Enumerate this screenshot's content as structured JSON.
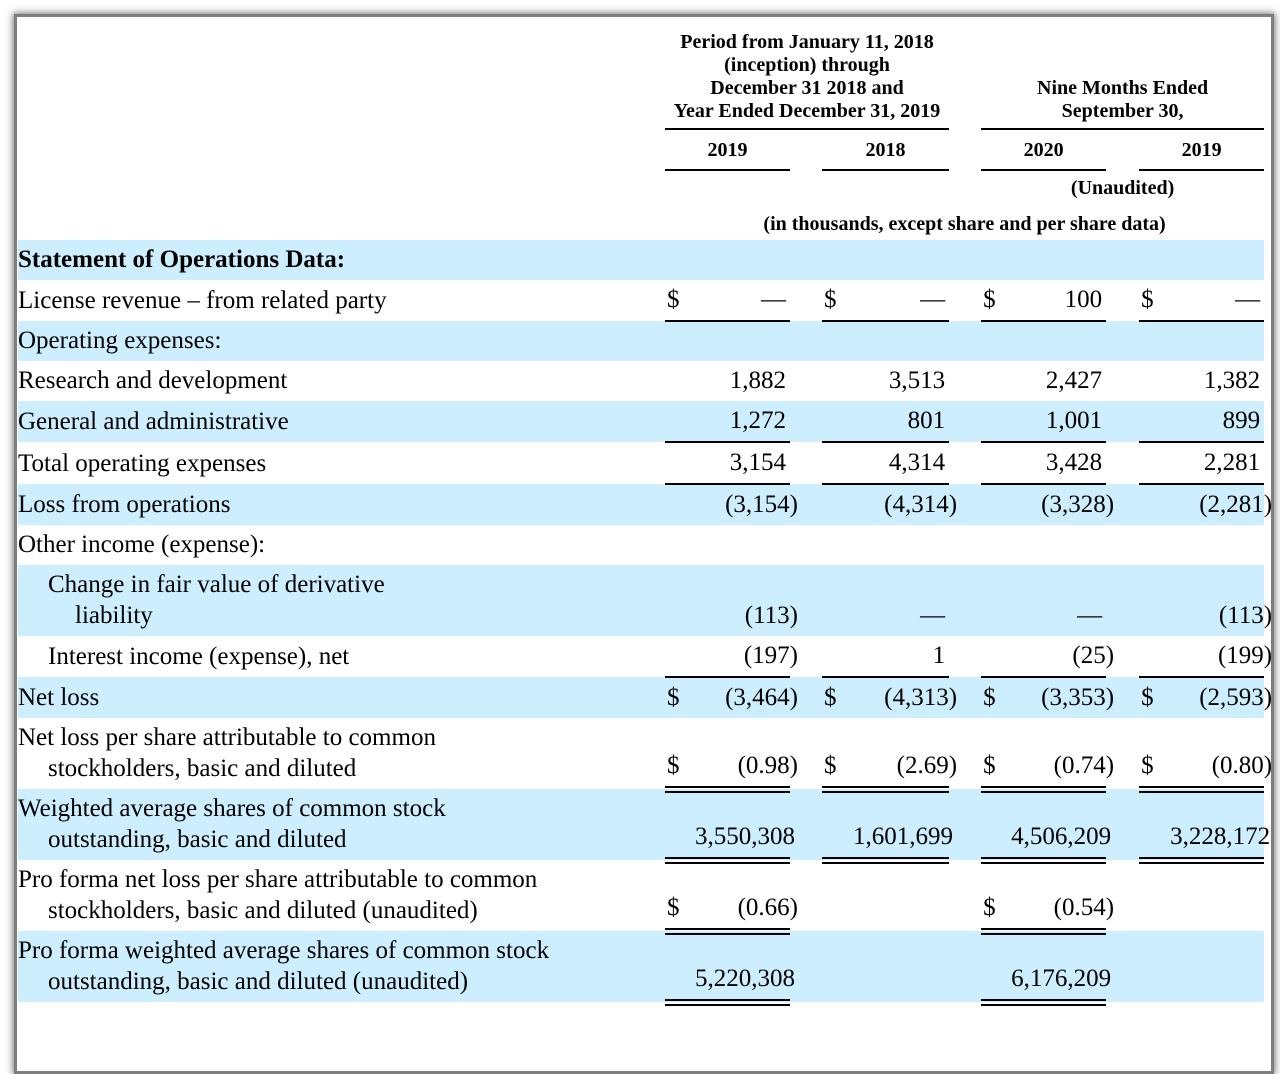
{
  "document": {
    "header": {
      "period_lines": [
        "Period from January 11, 2018",
        "(inception) through",
        "December 31 2018 and",
        "Year Ended December 31, 2019"
      ],
      "nine_months_lines": [
        "Nine Months Ended",
        "September 30,"
      ],
      "years": [
        "2019",
        "2018",
        "2020",
        "2019"
      ],
      "unaudited_note": "(Unaudited)",
      "units_note": "(in thousands, except share and per share data)"
    },
    "colors": {
      "row_highlight": "#cceeff",
      "rule": "#000000",
      "frame_border": "#7e7e7e"
    },
    "table": {
      "rows": [
        {
          "label": [
            "Statement of Operations Data:"
          ],
          "bold": true,
          "shaded": true,
          "indent": 0,
          "cells": [
            null,
            null,
            null,
            null
          ]
        },
        {
          "label": [
            "License revenue – from related party"
          ],
          "bold": false,
          "shaded": false,
          "indent": 0,
          "cells": [
            {
              "dollar": "$",
              "value": "—",
              "rule": "single"
            },
            {
              "dollar": "$",
              "value": "—",
              "rule": "single"
            },
            {
              "dollar": "$",
              "value": "100",
              "rule": "single"
            },
            {
              "dollar": "$",
              "value": "—",
              "rule": "single"
            }
          ]
        },
        {
          "label": [
            "Operating expenses:"
          ],
          "bold": false,
          "shaded": true,
          "indent": 0,
          "cells": [
            null,
            null,
            null,
            null
          ]
        },
        {
          "label": [
            "Research and development"
          ],
          "bold": false,
          "shaded": false,
          "indent": 0,
          "cells": [
            {
              "value": "1,882"
            },
            {
              "value": "3,513"
            },
            {
              "value": "2,427"
            },
            {
              "value": "1,382"
            }
          ]
        },
        {
          "label": [
            "General and administrative"
          ],
          "bold": false,
          "shaded": true,
          "indent": 0,
          "cells": [
            {
              "value": "1,272",
              "rule": "single"
            },
            {
              "value": "801",
              "rule": "single"
            },
            {
              "value": "1,001",
              "rule": "single"
            },
            {
              "value": "899",
              "rule": "single"
            }
          ]
        },
        {
          "label": [
            "Total operating expenses"
          ],
          "bold": false,
          "shaded": false,
          "indent": 0,
          "cells": [
            {
              "value": "3,154",
              "rule": "single"
            },
            {
              "value": "4,314",
              "rule": "single"
            },
            {
              "value": "3,428",
              "rule": "single"
            },
            {
              "value": "2,281",
              "rule": "single"
            }
          ]
        },
        {
          "label": [
            "Loss from operations"
          ],
          "bold": false,
          "shaded": true,
          "indent": 0,
          "cells": [
            {
              "value": "(3,154)"
            },
            {
              "value": "(4,314)"
            },
            {
              "value": "(3,328)"
            },
            {
              "value": "(2,281)"
            }
          ]
        },
        {
          "label": [
            "Other income (expense):"
          ],
          "bold": false,
          "shaded": false,
          "indent": 0,
          "cells": [
            null,
            null,
            null,
            null
          ]
        },
        {
          "label": [
            "Change in fair value of derivative",
            "liability"
          ],
          "bold": false,
          "shaded": true,
          "indent": 1,
          "cells": [
            {
              "value": "(113)"
            },
            {
              "value": "—"
            },
            {
              "value": "—"
            },
            {
              "value": "(113)"
            }
          ]
        },
        {
          "label": [
            "Interest income (expense), net"
          ],
          "bold": false,
          "shaded": false,
          "indent": 1,
          "cells": [
            {
              "value": "(197)",
              "rule": "single"
            },
            {
              "value": "1",
              "rule": "single"
            },
            {
              "value": "(25)",
              "rule": "single"
            },
            {
              "value": "(199)",
              "rule": "single"
            }
          ]
        },
        {
          "label": [
            "Net loss"
          ],
          "bold": false,
          "shaded": true,
          "indent": 0,
          "cells": [
            {
              "dollar": "$",
              "value": "(3,464)"
            },
            {
              "dollar": "$",
              "value": "(4,313)"
            },
            {
              "dollar": "$",
              "value": "(3,353)"
            },
            {
              "dollar": "$",
              "value": "(2,593)"
            }
          ]
        },
        {
          "label": [
            "Net loss per share attributable to common",
            "stockholders, basic and diluted"
          ],
          "bold": false,
          "shaded": false,
          "indent": 0,
          "cells": [
            {
              "dollar": "$",
              "value": "(0.98)",
              "rule": "double"
            },
            {
              "dollar": "$",
              "value": "(2.69)",
              "rule": "double"
            },
            {
              "dollar": "$",
              "value": "(0.74)",
              "rule": "double"
            },
            {
              "dollar": "$",
              "value": "(0.80)",
              "rule": "double"
            }
          ]
        },
        {
          "label": [
            "Weighted average shares of common stock",
            "outstanding, basic and diluted"
          ],
          "bold": false,
          "shaded": true,
          "indent": 0,
          "cells": [
            {
              "value": "3,550,308",
              "rule": "double"
            },
            {
              "value": "1,601,699",
              "rule": "double"
            },
            {
              "value": "4,506,209",
              "rule": "double"
            },
            {
              "value": "3,228,172",
              "rule": "double"
            }
          ]
        },
        {
          "label": [
            "Pro forma net loss per share attributable to common",
            "stockholders, basic and diluted (unaudited)"
          ],
          "bold": false,
          "shaded": false,
          "indent": 0,
          "cells": [
            {
              "dollar": "$",
              "value": "(0.66)",
              "rule": "double"
            },
            null,
            {
              "dollar": "$",
              "value": "(0.54)",
              "rule": "double"
            },
            null
          ]
        },
        {
          "label": [
            "Pro forma weighted average shares of common stock",
            "outstanding, basic and diluted (unaudited)"
          ],
          "bold": false,
          "shaded": true,
          "indent": 0,
          "cells": [
            {
              "value": "5,220,308",
              "rule": "double"
            },
            null,
            {
              "value": "6,176,209",
              "rule": "double"
            },
            null
          ]
        }
      ]
    }
  }
}
